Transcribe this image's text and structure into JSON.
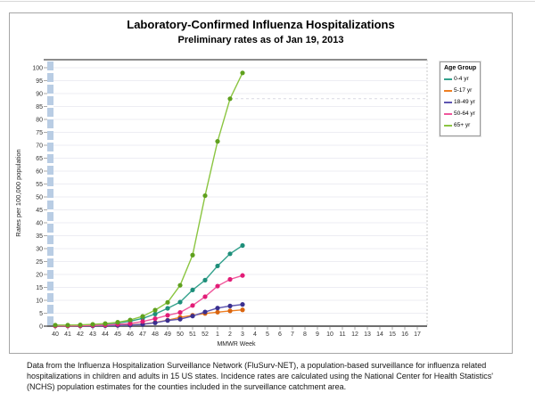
{
  "figure": {
    "title": "Laboratory-Confirmed Influenza Hospitalizations",
    "subtitle": "Preliminary rates as of Jan 19, 2013"
  },
  "legend": {
    "title": "Age Group"
  },
  "chart_data": {
    "type": "line",
    "title": "Laboratory-Confirmed Influenza Hospitalizations",
    "subtitle": "Preliminary rates as of Jan 19, 2013",
    "xlabel": "MMWR Week",
    "ylabel": "Rates per 100,000 population",
    "ylim": [
      0,
      100
    ],
    "ytick_step": 5,
    "grid": true,
    "legend_position": "right",
    "categories": [
      "40",
      "41",
      "42",
      "43",
      "44",
      "45",
      "46",
      "47",
      "48",
      "49",
      "50",
      "51",
      "52",
      "1",
      "2",
      "3",
      "4",
      "5",
      "6",
      "7",
      "8",
      "9",
      "10",
      "11",
      "12",
      "13",
      "14",
      "15",
      "16",
      "17"
    ],
    "series": [
      {
        "name": "0-4 yr",
        "color": "#33A18C",
        "marker_color": "#1E8E7A",
        "values": [
          0.3,
          0.3,
          0.4,
          0.5,
          0.7,
          1.2,
          1.9,
          3.0,
          4.7,
          6.9,
          9.3,
          14.0,
          17.8,
          23.3,
          28.0,
          31.2
        ]
      },
      {
        "name": "5-17 yr",
        "color": "#EE7F22",
        "marker_color": "#D96510",
        "values": [
          0.1,
          0.1,
          0.1,
          0.2,
          0.3,
          0.4,
          0.5,
          0.8,
          1.4,
          2.3,
          3.4,
          4.2,
          4.9,
          5.4,
          5.9,
          6.3
        ]
      },
      {
        "name": "18-49 yr",
        "color": "#5D55B0",
        "marker_color": "#3A2F8F",
        "values": [
          0.1,
          0.1,
          0.1,
          0.1,
          0.2,
          0.3,
          0.4,
          0.7,
          1.3,
          2.2,
          2.7,
          3.9,
          5.5,
          7.0,
          7.8,
          8.4
        ]
      },
      {
        "name": "50-64 yr",
        "color": "#F0579C",
        "marker_color": "#E21C77",
        "values": [
          0.1,
          0.1,
          0.2,
          0.3,
          0.4,
          0.7,
          1.0,
          1.8,
          2.9,
          4.2,
          5.3,
          8.0,
          11.4,
          15.5,
          18.1,
          19.6
        ]
      },
      {
        "name": "65+ yr",
        "color": "#8BC541",
        "marker_color": "#5FA01E",
        "values": [
          0.4,
          0.4,
          0.5,
          0.7,
          1.0,
          1.5,
          2.4,
          3.8,
          6.2,
          9.2,
          15.8,
          27.5,
          50.5,
          71.5,
          88.0,
          98.0
        ]
      }
    ],
    "annotations": [
      {
        "type": "dashed-reference-line",
        "value": 88,
        "from_category": "2"
      }
    ],
    "colors": {
      "axis_line": "#6e6e6e",
      "plot_top_border": "#8c8c8c",
      "gridline": "#ededf3",
      "axis_tick_strip": "#b9cde4",
      "tick": "#aaaaaa",
      "tick_label": "#333333"
    }
  },
  "footnote": "Data from the Influenza Hospitalization Surveillance Network (FluSurv-NET), a population-based surveillance for influenza related hospitalizations in children and adults in 15 US states.  Incidence rates are calculated using the National Center for Health Statistics' (NCHS) population estimates for the counties included in the surveillance catchment area."
}
